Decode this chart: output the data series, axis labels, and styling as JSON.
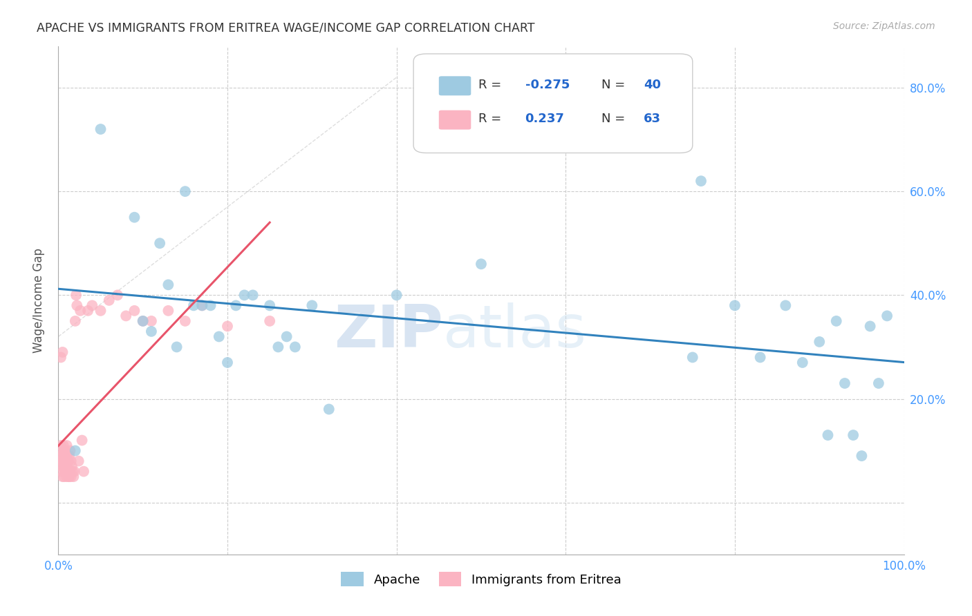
{
  "title": "APACHE VS IMMIGRANTS FROM ERITREA WAGE/INCOME GAP CORRELATION CHART",
  "source": "Source: ZipAtlas.com",
  "ylabel": "Wage/Income Gap",
  "xlim": [
    0.0,
    1.0
  ],
  "ylim": [
    -0.1,
    0.88
  ],
  "ytick_vals": [
    0.0,
    0.2,
    0.4,
    0.6,
    0.8
  ],
  "ytick_labels": [
    "",
    "20.0%",
    "40.0%",
    "60.0%",
    "80.0%"
  ],
  "xtick_vals": [
    0.0,
    0.2,
    0.4,
    0.6,
    0.8,
    1.0
  ],
  "xtick_labels": [
    "0.0%",
    "",
    "",
    "",
    "",
    "100.0%"
  ],
  "apache_color": "#9ecae1",
  "eritrea_color": "#fbb4c2",
  "trendline_apache_color": "#3182bd",
  "trendline_eritrea_color": "#e8546a",
  "apache_R": -0.275,
  "apache_N": 40,
  "eritrea_R": 0.237,
  "eritrea_N": 63,
  "apache_x": [
    0.02,
    0.05,
    0.09,
    0.12,
    0.13,
    0.15,
    0.16,
    0.18,
    0.2,
    0.22,
    0.25,
    0.27,
    0.3,
    0.5,
    0.76,
    0.8,
    0.83,
    0.86,
    0.88,
    0.9,
    0.91,
    0.92,
    0.93,
    0.94,
    0.95,
    0.96,
    0.97,
    0.98,
    0.1,
    0.11,
    0.14,
    0.17,
    0.19,
    0.21,
    0.23,
    0.26,
    0.28,
    0.32,
    0.4,
    0.75
  ],
  "apache_y": [
    0.1,
    0.72,
    0.55,
    0.5,
    0.42,
    0.6,
    0.38,
    0.38,
    0.27,
    0.4,
    0.38,
    0.32,
    0.38,
    0.46,
    0.62,
    0.38,
    0.28,
    0.38,
    0.27,
    0.31,
    0.13,
    0.35,
    0.23,
    0.13,
    0.09,
    0.34,
    0.23,
    0.36,
    0.35,
    0.33,
    0.3,
    0.38,
    0.32,
    0.38,
    0.4,
    0.3,
    0.3,
    0.18,
    0.4,
    0.28
  ],
  "eritrea_x": [
    0.003,
    0.003,
    0.003,
    0.003,
    0.004,
    0.004,
    0.004,
    0.005,
    0.005,
    0.005,
    0.006,
    0.006,
    0.006,
    0.006,
    0.007,
    0.007,
    0.007,
    0.007,
    0.008,
    0.008,
    0.008,
    0.009,
    0.009,
    0.009,
    0.01,
    0.01,
    0.01,
    0.01,
    0.011,
    0.011,
    0.012,
    0.012,
    0.013,
    0.013,
    0.014,
    0.014,
    0.015,
    0.015,
    0.016,
    0.017,
    0.018,
    0.019,
    0.02,
    0.021,
    0.022,
    0.024,
    0.026,
    0.028,
    0.03,
    0.035,
    0.04,
    0.05,
    0.06,
    0.07,
    0.08,
    0.09,
    0.1,
    0.11,
    0.13,
    0.15,
    0.17,
    0.2,
    0.25
  ],
  "eritrea_y": [
    0.07,
    0.09,
    0.11,
    0.28,
    0.06,
    0.08,
    0.1,
    0.05,
    0.08,
    0.29,
    0.07,
    0.08,
    0.09,
    0.11,
    0.05,
    0.07,
    0.09,
    0.1,
    0.06,
    0.08,
    0.1,
    0.06,
    0.08,
    0.09,
    0.05,
    0.07,
    0.09,
    0.11,
    0.06,
    0.08,
    0.05,
    0.08,
    0.05,
    0.09,
    0.06,
    0.1,
    0.05,
    0.08,
    0.07,
    0.06,
    0.05,
    0.06,
    0.35,
    0.4,
    0.38,
    0.08,
    0.37,
    0.12,
    0.06,
    0.37,
    0.38,
    0.37,
    0.39,
    0.4,
    0.36,
    0.37,
    0.35,
    0.35,
    0.37,
    0.35,
    0.38,
    0.34,
    0.35
  ],
  "watermark_zip": "ZIP",
  "watermark_atlas": "atlas",
  "background_color": "#ffffff",
  "grid_color": "#cccccc",
  "tick_color": "#4499ff",
  "legend_R_label_color": "#333333",
  "legend_RN_value_color": "#2266cc",
  "legend_border_color": "#cccccc",
  "apache_legend_color": "#9ecae1",
  "eritrea_legend_color": "#fbb4c2",
  "diag_line_color": "#cccccc"
}
